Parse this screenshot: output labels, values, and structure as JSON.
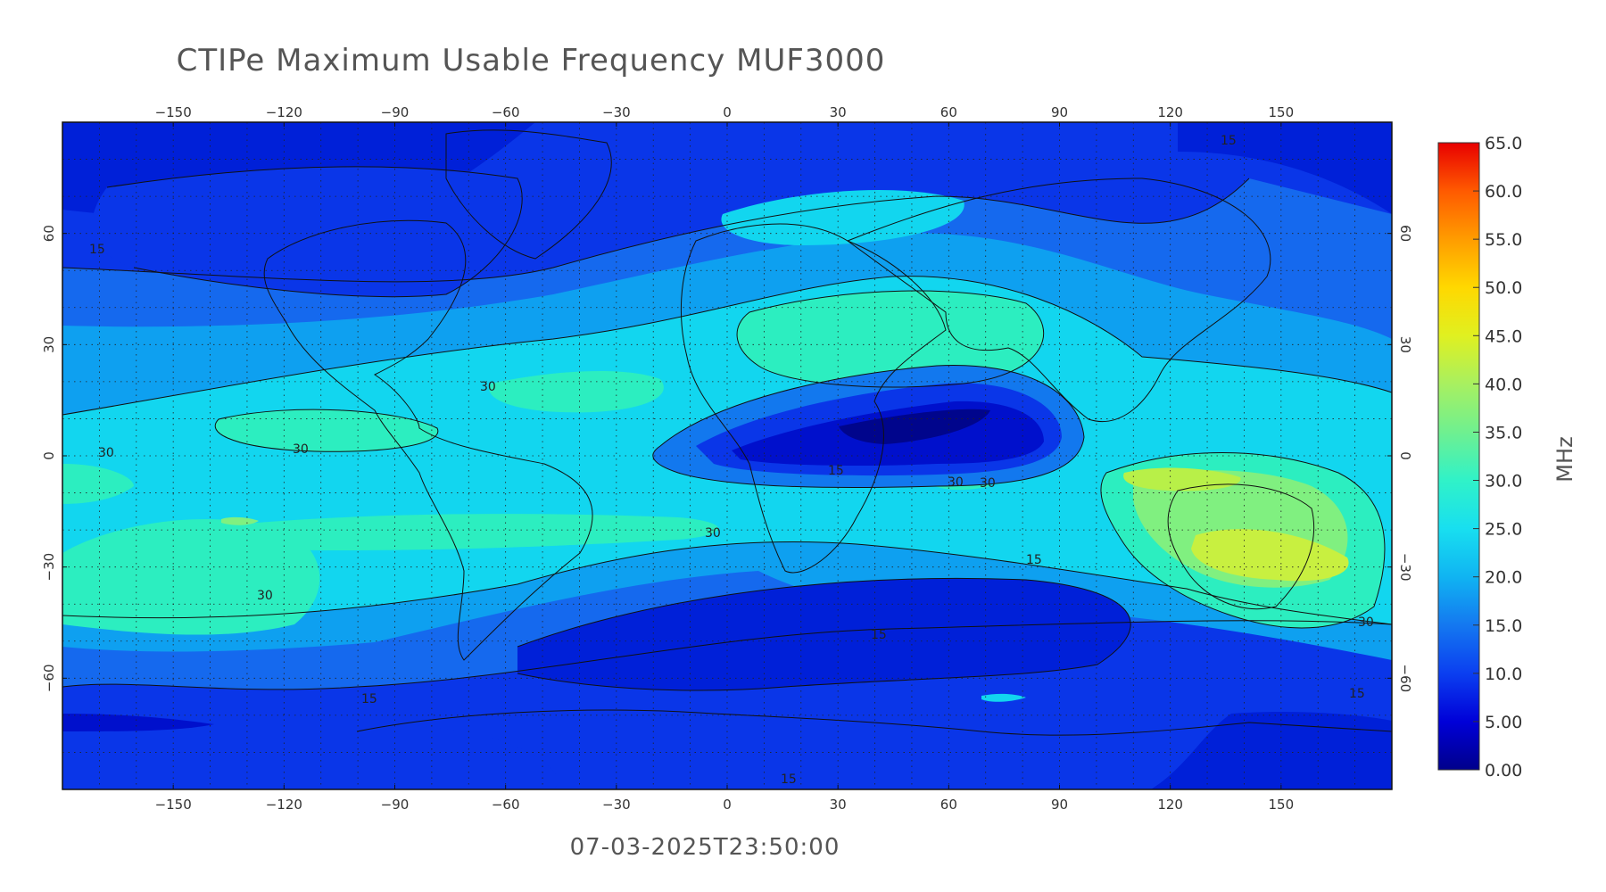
{
  "title": "CTIPe Maximum Usable Frequency MUF3000",
  "timestamp": "07-03-2025T23:50:00",
  "map": {
    "projection": "equirectangular",
    "lon_range": [
      -180,
      180
    ],
    "lat_range": [
      -90,
      90
    ],
    "lon_ticks": [
      -150,
      -120,
      -90,
      -60,
      -30,
      0,
      30,
      60,
      90,
      120,
      150
    ],
    "lat_ticks": [
      -60,
      -30,
      0,
      30,
      60
    ],
    "lon_tick_labels": [
      "−150",
      "−120",
      "−90",
      "−60",
      "−30",
      "0",
      "30",
      "60",
      "90",
      "120",
      "150"
    ],
    "lat_tick_labels": [
      "−60",
      "−30",
      "0",
      "30",
      "60"
    ],
    "grid": "dotted"
  },
  "colorbar": {
    "unit": "MHz",
    "min": 0,
    "max": 65,
    "labels": [
      "65.0",
      "60.0",
      "55.0",
      "50.0",
      "45.0",
      "40.0",
      "35.0",
      "30.0",
      "25.0",
      "20.0",
      "15.0",
      "10.0",
      "5.00",
      "0.00"
    ],
    "colors": [
      "#00008b",
      "#0000d8",
      "#0b3ff0",
      "#1478f0",
      "#10b4f2",
      "#18dff0",
      "#30f2c8",
      "#6ff090",
      "#a8f060",
      "#e0f020",
      "#ffd800",
      "#ff9c00",
      "#ff5a00",
      "#e80000"
    ]
  },
  "contour_labels": [
    "15",
    "15",
    "30",
    "30",
    "30",
    "30",
    "30",
    "15",
    "30",
    "30",
    "15",
    "15",
    "15",
    "15",
    "30",
    "15"
  ]
}
